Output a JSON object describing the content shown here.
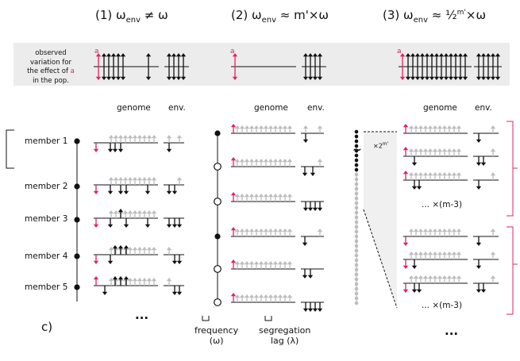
{
  "colors": {
    "red": "#e0245e",
    "black": "#111111",
    "gray": "#bdbdbd",
    "band": "#ececec"
  },
  "titles": {
    "t1_prefix": "(1) ω",
    "t1_sub": "env",
    "t1_suffix": " ≠ ω",
    "t2_prefix": "(2) ω",
    "t2_sub": "env",
    "t2_suffix": " ≈ m'×ω",
    "t3_prefix": "(3) ω",
    "t3_sub": "env",
    "t3_mid": " ≈ ½",
    "t3_sup": "m'",
    "t3_suffix": "×ω"
  },
  "observed": {
    "line1": "observed",
    "line2": "variation for",
    "line3_a": "the effect of ",
    "line3_b": "a",
    "line4": "in the pop.",
    "marker": "a"
  },
  "headers": {
    "genome": "genome",
    "env": "env."
  },
  "members": [
    "member 1",
    "member 2",
    "member 3",
    "member 4",
    "member 5"
  ],
  "ellipsis": "...",
  "panel_label": "c)",
  "frequency_label": "frequency",
  "frequency_symbol": "(ω)",
  "segregation_label": "segregation",
  "segregation_symbol": "lag (λ)",
  "times_label": "×2",
  "times_sup": "m'",
  "tilde": "~",
  "repeat_label": "... ×(m-3)"
}
